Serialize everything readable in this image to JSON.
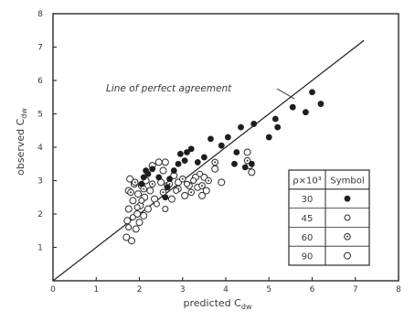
{
  "chart_data": {
    "type": "scatter",
    "title": "",
    "xlabel": "predicted",
    "xlabel_sym": "C",
    "xlabel_sub": "dw",
    "ylabel": "observed",
    "ylabel_sym": "C",
    "ylabel_sub": "dw",
    "xlim": [
      0,
      8
    ],
    "ylim": [
      0,
      8
    ],
    "x_ticks": [
      "0",
      "1",
      "2",
      "3",
      "4",
      "5",
      "6",
      "7",
      "8"
    ],
    "y_ticks": [
      "1",
      "2",
      "3",
      "4",
      "5",
      "6",
      "7",
      "8"
    ],
    "annotation": "Line of perfect agreement",
    "reference_line": {
      "from": [
        0,
        0
      ],
      "to": [
        7.2,
        7.2
      ]
    },
    "legend": {
      "placement": "bottom-right",
      "header_left": "ρ×10³",
      "header_right": "Symbol",
      "rows": [
        {
          "value": "30",
          "marker": "filled"
        },
        {
          "value": "45",
          "marker": "open-small"
        },
        {
          "value": "60",
          "marker": "dotted"
        },
        {
          "value": "90",
          "marker": "open"
        }
      ]
    },
    "series": [
      {
        "legend_value": "30",
        "marker": "filled",
        "points": [
          [
            2.05,
            2.9
          ],
          [
            2.1,
            3.1
          ],
          [
            2.15,
            3.3
          ],
          [
            2.2,
            3.2
          ],
          [
            2.3,
            3.35
          ],
          [
            2.45,
            3.1
          ],
          [
            2.6,
            2.5
          ],
          [
            2.65,
            2.8
          ],
          [
            2.7,
            3.05
          ],
          [
            2.8,
            3.3
          ],
          [
            2.9,
            3.5
          ],
          [
            2.95,
            3.8
          ],
          [
            3.05,
            3.6
          ],
          [
            3.1,
            3.85
          ],
          [
            3.2,
            3.95
          ],
          [
            3.35,
            3.55
          ],
          [
            3.5,
            3.7
          ],
          [
            3.65,
            4.25
          ],
          [
            3.9,
            4.05
          ],
          [
            4.05,
            4.3
          ],
          [
            4.2,
            3.5
          ],
          [
            4.25,
            3.85
          ],
          [
            4.35,
            4.6
          ],
          [
            4.45,
            3.4
          ],
          [
            4.6,
            3.5
          ],
          [
            4.65,
            4.7
          ],
          [
            5.0,
            4.3
          ],
          [
            5.15,
            4.85
          ],
          [
            5.2,
            4.6
          ],
          [
            5.55,
            5.2
          ],
          [
            5.85,
            5.05
          ],
          [
            6.0,
            5.65
          ],
          [
            6.2,
            5.3
          ]
        ]
      },
      {
        "legend_value": "45",
        "marker": "open-small",
        "points": [
          [
            1.75,
            1.6
          ],
          [
            1.85,
            1.9
          ],
          [
            1.95,
            2.2
          ],
          [
            2.05,
            2.4
          ],
          [
            2.4,
            2.3
          ],
          [
            2.6,
            2.15
          ],
          [
            2.85,
            2.7
          ],
          [
            3.1,
            2.9
          ],
          [
            3.25,
            3.0
          ],
          [
            3.4,
            3.2
          ]
        ]
      },
      {
        "legend_value": "60",
        "marker": "dotted",
        "points": [
          [
            1.8,
            2.65
          ],
          [
            1.9,
            2.95
          ],
          [
            2.1,
            2.75
          ],
          [
            2.3,
            2.9
          ],
          [
            2.55,
            2.65
          ],
          [
            2.7,
            2.9
          ],
          [
            2.9,
            2.75
          ],
          [
            3.0,
            3.05
          ],
          [
            3.2,
            2.65
          ],
          [
            3.45,
            2.85
          ],
          [
            3.6,
            3.0
          ],
          [
            3.75,
            3.55
          ],
          [
            4.5,
            3.6
          ]
        ]
      },
      {
        "legend_value": "90",
        "marker": "open",
        "points": [
          [
            1.7,
            1.3
          ],
          [
            1.72,
            1.8
          ],
          [
            1.75,
            2.15
          ],
          [
            1.75,
            2.7
          ],
          [
            1.78,
            3.05
          ],
          [
            1.82,
            1.2
          ],
          [
            1.85,
            2.4
          ],
          [
            1.88,
            2.9
          ],
          [
            1.92,
            1.55
          ],
          [
            1.95,
            2.0
          ],
          [
            1.97,
            2.6
          ],
          [
            2.0,
            1.75
          ],
          [
            2.02,
            2.25
          ],
          [
            2.05,
            2.85
          ],
          [
            2.1,
            1.95
          ],
          [
            2.12,
            2.5
          ],
          [
            2.15,
            3.0
          ],
          [
            2.2,
            2.15
          ],
          [
            2.25,
            2.7
          ],
          [
            2.3,
            3.45
          ],
          [
            2.35,
            2.45
          ],
          [
            2.45,
            3.55
          ],
          [
            2.5,
            2.95
          ],
          [
            2.55,
            3.3
          ],
          [
            2.6,
            3.55
          ],
          [
            2.65,
            2.85
          ],
          [
            2.75,
            2.45
          ],
          [
            2.8,
            3.15
          ],
          [
            2.9,
            2.95
          ],
          [
            3.05,
            2.55
          ],
          [
            3.15,
            2.85
          ],
          [
            3.3,
            3.1
          ],
          [
            3.35,
            2.8
          ],
          [
            3.45,
            2.55
          ],
          [
            3.5,
            3.1
          ],
          [
            3.55,
            2.7
          ],
          [
            3.75,
            3.35
          ],
          [
            3.9,
            2.95
          ],
          [
            4.5,
            3.85
          ],
          [
            4.55,
            3.45
          ],
          [
            4.6,
            3.25
          ]
        ]
      }
    ]
  }
}
